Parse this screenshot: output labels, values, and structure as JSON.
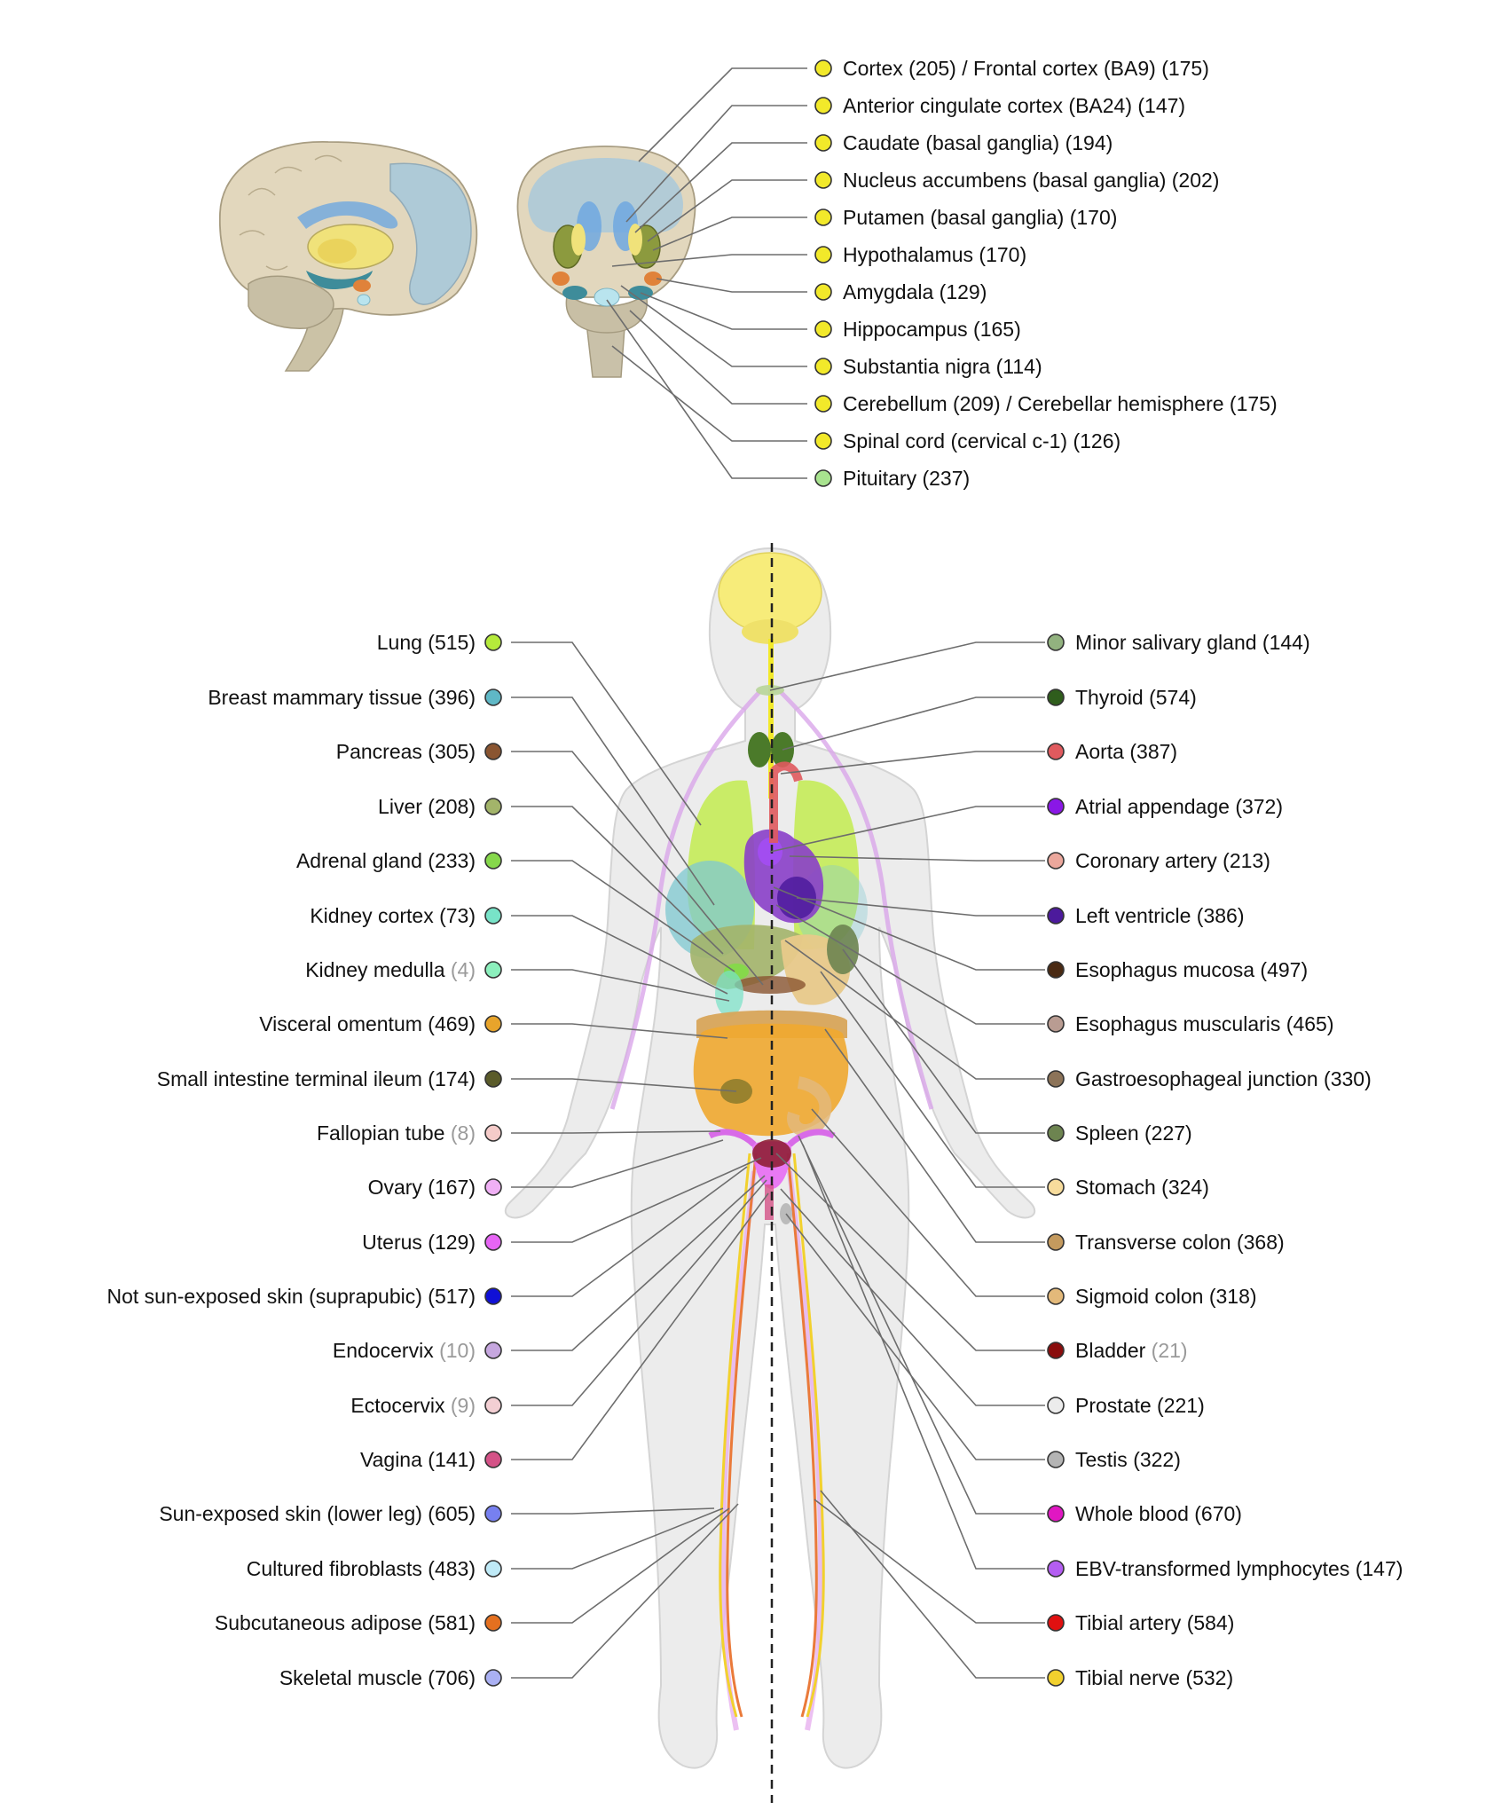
{
  "brain_regions": [
    {
      "name": "Cortex",
      "count": "(205)",
      "extra": " / Frontal cortex (BA9) (175)",
      "color": "#f2e92a"
    },
    {
      "name": "Anterior cingulate cortex (BA24)",
      "count": "(147)",
      "color": "#f2e92a"
    },
    {
      "name": "Caudate (basal ganglia)",
      "count": "(194)",
      "color": "#f2e92a"
    },
    {
      "name": "Nucleus accumbens (basal ganglia)",
      "count": "(202)",
      "color": "#f2e92a"
    },
    {
      "name": "Putamen (basal ganglia)",
      "count": "(170)",
      "color": "#f2e92a"
    },
    {
      "name": "Hypothalamus",
      "count": "(170)",
      "color": "#f2e92a"
    },
    {
      "name": "Amygdala",
      "count": "(129)",
      "color": "#f2e92a"
    },
    {
      "name": "Hippocampus",
      "count": "(165)",
      "color": "#f2e92a"
    },
    {
      "name": "Substantia nigra",
      "count": "(114)",
      "color": "#f2e92a"
    },
    {
      "name": "Cerebellum",
      "count": "(209)",
      "extra": " / Cerebellar hemisphere (175)",
      "color": "#f2e92a"
    },
    {
      "name": "Spinal cord (cervical c-1)",
      "count": "(126)",
      "color": "#f2e92a"
    },
    {
      "name": "Pituitary",
      "count": "(237)",
      "color": "#a8e38f"
    }
  ],
  "left_tissues": [
    {
      "name": "Lung",
      "count": "(515)",
      "color": "#b5ea3b"
    },
    {
      "name": "Breast mammary tissue",
      "count": "(396)",
      "color": "#5fb8c6"
    },
    {
      "name": "Pancreas",
      "count": "(305)",
      "color": "#8a5531"
    },
    {
      "name": "Liver",
      "count": "(208)",
      "color": "#a3b46a"
    },
    {
      "name": "Adrenal gland",
      "count": "(233)",
      "color": "#86d84b"
    },
    {
      "name": "Kidney cortex",
      "count": "(73)",
      "color": "#78e3c8"
    },
    {
      "name": "Kidney medulla",
      "count": "(4)",
      "dim": true,
      "color": "#8cf0bd"
    },
    {
      "name": "Visceral omentum",
      "count": "(469)",
      "color": "#e8a42b"
    },
    {
      "name": "Small intestine terminal ileum",
      "count": "(174)",
      "color": "#5a5b2a"
    },
    {
      "name": "Fallopian tube",
      "count": "(8)",
      "dim": true,
      "color": "#f5cbc9"
    },
    {
      "name": "Ovary",
      "count": "(167)",
      "color": "#f0b0f5"
    },
    {
      "name": "Uterus",
      "count": "(129)",
      "color": "#e765f5"
    },
    {
      "name": "Not sun-exposed skin (suprapubic)",
      "count": "(517)",
      "color": "#1010d6"
    },
    {
      "name": "Endocervix",
      "count": "(10)",
      "dim": true,
      "color": "#c6a7df"
    },
    {
      "name": "Ectocervix",
      "count": "(9)",
      "dim": true,
      "color": "#f3cfd3"
    },
    {
      "name": "Vagina",
      "count": "(141)",
      "color": "#d45287"
    },
    {
      "name": "Sun-exposed skin (lower leg)",
      "count": "(605)",
      "color": "#7780f0"
    },
    {
      "name": "Cultured fibroblasts",
      "count": "(483)",
      "color": "#bfeaf7"
    },
    {
      "name": "Subcutaneous adipose",
      "count": "(581)",
      "color": "#e4701f"
    },
    {
      "name": "Skeletal muscle",
      "count": "(706)",
      "color": "#aab0f3"
    }
  ],
  "right_tissues": [
    {
      "name": "Minor salivary gland",
      "count": "(144)",
      "color": "#92b27f"
    },
    {
      "name": "Thyroid",
      "count": "(574)",
      "color": "#2f5d1c"
    },
    {
      "name": "Aorta",
      "count": "(387)",
      "color": "#e05a5e"
    },
    {
      "name": "Atrial appendage",
      "count": "(372)",
      "color": "#8a17e6"
    },
    {
      "name": "Coronary artery",
      "count": "(213)",
      "color": "#eba79c"
    },
    {
      "name": "Left ventricle",
      "count": "(386)",
      "color": "#4c1a9c"
    },
    {
      "name": "Esophagus mucosa",
      "count": "(497)",
      "color": "#4a2a13"
    },
    {
      "name": "Esophagus muscularis",
      "count": "(465)",
      "color": "#b99c92"
    },
    {
      "name": "Gastroesophageal junction",
      "count": "(330)",
      "color": "#8c7358"
    },
    {
      "name": "Spleen",
      "count": "(227)",
      "color": "#6d8450"
    },
    {
      "name": "Stomach",
      "count": "(324)",
      "color": "#f7dc9c"
    },
    {
      "name": "Transverse colon",
      "count": "(368)",
      "color": "#c49a5e"
    },
    {
      "name": "Sigmoid colon",
      "count": "(318)",
      "color": "#e3b97a"
    },
    {
      "name": "Bladder",
      "count": "(21)",
      "dim": true,
      "color": "#8a0d0d"
    },
    {
      "name": "Prostate",
      "count": "(221)",
      "color": "#ececec"
    },
    {
      "name": "Testis",
      "count": "(322)",
      "color": "#b4b4b4"
    },
    {
      "name": "Whole blood",
      "count": "(670)",
      "color": "#e017c2"
    },
    {
      "name": "EBV-transformed lymphocytes",
      "count": "(147)",
      "color": "#b45ef2"
    },
    {
      "name": "Tibial artery",
      "count": "(584)",
      "color": "#e01010"
    },
    {
      "name": "Tibial nerve",
      "count": "(532)",
      "color": "#f2d12e"
    }
  ]
}
